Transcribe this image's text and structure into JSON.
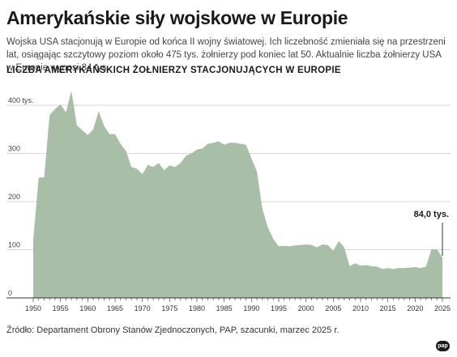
{
  "header": {
    "title": "Amerykańskie siły wojskowe w Europie",
    "subtitle": "Wojska USA stacjonują w Europie od końca II wojny światowej. Ich liczebność zmieniała się na przestrzeni lat, osiągając szczytowy poziom około 475 tys. żołnierzy pod koniec lat 50. Aktualnie liczba żołnierzy USA w Europie wynosi 84 tys.",
    "chart_heading": "LICZBA AMERYKAŃSKICH ŻOŁNIERZY STACJONUJĄCYCH W EUROPIE"
  },
  "chart_data": {
    "type": "area",
    "title": "LICZBA AMERYKAŃSKICH ŻOŁNIERZY STACJONUJĄCYCH W EUROPIE",
    "xlabel": "",
    "ylabel": "",
    "xlim": [
      1950,
      2025
    ],
    "ylim": [
      0,
      400
    ],
    "x_ticks": [
      1950,
      1955,
      1960,
      1965,
      1970,
      1975,
      1980,
      1985,
      1990,
      1995,
      2000,
      2005,
      2010,
      2015,
      2020,
      2025
    ],
    "y_ticks": [
      {
        "value": 0,
        "label": "0"
      },
      {
        "value": 100,
        "label": "100"
      },
      {
        "value": 200,
        "label": "200"
      },
      {
        "value": 300,
        "label": "300"
      },
      {
        "value": 400,
        "label": "400 tys."
      }
    ],
    "grid": true,
    "fill_color": "#a9bea6",
    "x": [
      1950,
      1951,
      1952,
      1953,
      1954,
      1955,
      1956,
      1957,
      1958,
      1959,
      1960,
      1961,
      1962,
      1963,
      1964,
      1965,
      1966,
      1967,
      1968,
      1969,
      1970,
      1971,
      1972,
      1973,
      1974,
      1975,
      1976,
      1977,
      1978,
      1979,
      1980,
      1981,
      1982,
      1983,
      1984,
      1985,
      1986,
      1987,
      1988,
      1989,
      1990,
      1991,
      1992,
      1993,
      1994,
      1995,
      1996,
      1997,
      1998,
      1999,
      2000,
      2001,
      2002,
      2003,
      2004,
      2005,
      2006,
      2007,
      2008,
      2009,
      2010,
      2011,
      2012,
      2013,
      2014,
      2015,
      2016,
      2017,
      2018,
      2019,
      2020,
      2021,
      2022,
      2023,
      2024,
      2025
    ],
    "values": [
      120,
      250,
      250,
      380,
      392,
      402,
      385,
      430,
      358,
      348,
      338,
      350,
      388,
      357,
      340,
      340,
      320,
      305,
      272,
      268,
      257,
      276,
      272,
      280,
      265,
      275,
      272,
      280,
      295,
      300,
      308,
      310,
      320,
      322,
      325,
      318,
      322,
      322,
      320,
      318,
      290,
      262,
      185,
      147,
      122,
      107,
      108,
      107,
      109,
      110,
      111,
      110,
      105,
      111,
      110,
      98,
      118,
      105,
      66,
      72,
      67,
      68,
      66,
      65,
      60,
      62,
      60,
      62,
      62,
      63,
      64,
      62,
      65,
      101,
      101,
      84
    ],
    "annotations": [
      {
        "x": 2025,
        "y": 84,
        "text": "84,0 tys."
      }
    ]
  },
  "footer": {
    "source": "Źródło: Departament Obrony Stanów Zjednoczonych, PAP, szacunki, marzec 2025 r.",
    "logo": "pap"
  }
}
